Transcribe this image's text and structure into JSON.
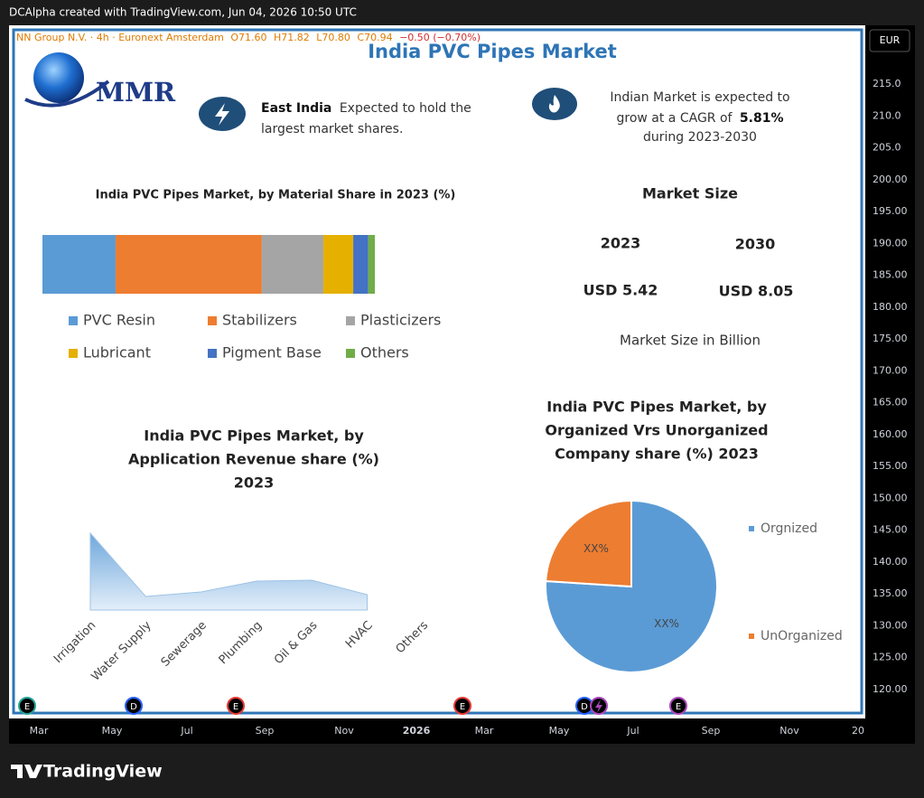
{
  "header": {
    "text": "DCAlpha created with TradingView.com, Jun 04, 2026 10:50 UTC"
  },
  "legend_line": {
    "symbol": "NN Group N.V. · 4h · Euronext Amsterdam",
    "open": "O71.60",
    "high": "H71.82",
    "low": "L70.80",
    "close": "C70.94",
    "change": "−0.50 (−0.70%)"
  },
  "currency": "EUR",
  "price_axis": [
    "215.0",
    "210.0",
    "205.0",
    "200.00",
    "195.00",
    "190.00",
    "185.00",
    "180.00",
    "175.00",
    "170.00",
    "165.00",
    "160.00",
    "155.00",
    "150.00",
    "145.00",
    "140.00",
    "135.00",
    "130.00",
    "125.00",
    "120.00"
  ],
  "time_axis": [
    "Mar",
    "May",
    "Jul",
    "Sep",
    "Nov",
    "2026",
    "Mar",
    "May",
    "Jul",
    "Sep",
    "Nov",
    "20"
  ],
  "events": [
    "E",
    "D",
    "E",
    "E",
    "D",
    "E"
  ],
  "infographic": {
    "title": "India PVC Pipes Market",
    "logo": "MMR",
    "callout_region": {
      "bold": "East India",
      "lines": [
        "Expected to hold the",
        "largest market shares."
      ]
    },
    "callout_cagr": {
      "lines": [
        "Indian Market is expected to",
        "grow at a CAGR of",
        "during 2023-2030"
      ],
      "bold": "5.81%"
    },
    "material_chart": {
      "type": "stacked-bar",
      "title": "India PVC Pipes Market, by Material Share in 2023 (%)",
      "series": [
        {
          "name": "PVC Resin",
          "color": "#5b9bd5",
          "value": 22
        },
        {
          "name": "Stabilizers",
          "color": "#ed7d31",
          "value": 44
        },
        {
          "name": "Plasticizers",
          "color": "#a5a5a5",
          "value": 18.5
        },
        {
          "name": "Lubricant",
          "color": "#e5b000",
          "value": 9
        },
        {
          "name": "Pigment Base",
          "color": "#4472c4",
          "value": 4.5
        },
        {
          "name": "Others",
          "color": "#70ad47",
          "value": 2
        }
      ]
    },
    "market_size": {
      "title": "Market Size",
      "years": [
        "2023",
        "2030"
      ],
      "values": [
        "USD 5.42",
        "USD 8.05"
      ],
      "note": "Market Size in Billion"
    },
    "application_chart": {
      "type": "area",
      "title": [
        "India PVC Pipes Market, by",
        "Application Revenue share (%)",
        "2023"
      ],
      "categories": [
        "Irrigation",
        "Water Supply",
        "Sewerage",
        "Plumbing",
        "Oil & Gas",
        "HVAC",
        "Others"
      ],
      "values": [
        85,
        15,
        20,
        32,
        33,
        17,
        null
      ],
      "color": "#9dc3e6"
    },
    "company_chart": {
      "type": "pie",
      "title": [
        "India PVC Pipes Market, by",
        "Organized Vrs Unorganized",
        "Company share (%) 2023"
      ],
      "categories": [
        "Orgnized",
        "UnOrganized"
      ],
      "values": [
        76,
        24
      ],
      "colors": [
        "#5b9bd5",
        "#ed7d31"
      ],
      "data_labels": [
        "XX%",
        "XX%"
      ]
    }
  },
  "footer": {
    "brand": "TradingView"
  }
}
